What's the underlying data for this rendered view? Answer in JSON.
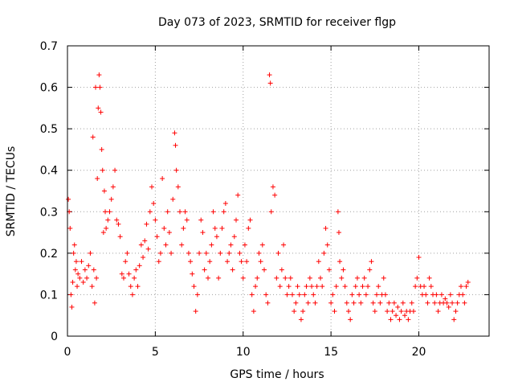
{
  "chart_data": {
    "type": "scatter",
    "title": "Day 073 of 2023, SRMTID for receiver flgp",
    "xlabel": "GPS time / hours",
    "ylabel": "SRMTID / TECUs",
    "xlim": [
      0,
      24
    ],
    "ylim": [
      0,
      0.7
    ],
    "x_ticks": [
      0,
      5,
      10,
      15,
      20
    ],
    "x_tick_labels": [
      "0",
      "5",
      "10",
      "15",
      "20"
    ],
    "y_ticks": [
      0,
      0.1,
      0.2,
      0.3,
      0.4,
      0.5,
      0.6,
      0.7
    ],
    "y_tick_labels": [
      "0",
      "0.1",
      "0.2",
      "0.3",
      "0.4",
      "0.5",
      "0.6",
      "0.7"
    ],
    "grid": true,
    "marker": "plus",
    "marker_color": "#ff0000",
    "series": [
      {
        "name": "SRMTID",
        "points": [
          [
            0.05,
            0.33
          ],
          [
            0.1,
            0.3
          ],
          [
            0.15,
            0.26
          ],
          [
            0.2,
            0.1
          ],
          [
            0.25,
            0.07
          ],
          [
            0.3,
            0.13
          ],
          [
            0.35,
            0.2
          ],
          [
            0.4,
            0.22
          ],
          [
            0.45,
            0.16
          ],
          [
            0.5,
            0.18
          ],
          [
            0.55,
            0.12
          ],
          [
            0.6,
            0.15
          ],
          [
            0.7,
            0.14
          ],
          [
            0.8,
            0.18
          ],
          [
            0.9,
            0.13
          ],
          [
            1.0,
            0.16
          ],
          [
            1.1,
            0.14
          ],
          [
            1.2,
            0.17
          ],
          [
            1.3,
            0.2
          ],
          [
            1.4,
            0.12
          ],
          [
            1.45,
            0.48
          ],
          [
            1.5,
            0.16
          ],
          [
            1.55,
            0.08
          ],
          [
            1.6,
            0.6
          ],
          [
            1.65,
            0.14
          ],
          [
            1.7,
            0.38
          ],
          [
            1.75,
            0.55
          ],
          [
            1.8,
            0.63
          ],
          [
            1.85,
            0.6
          ],
          [
            1.9,
            0.54
          ],
          [
            1.95,
            0.45
          ],
          [
            2.0,
            0.4
          ],
          [
            2.05,
            0.25
          ],
          [
            2.1,
            0.35
          ],
          [
            2.15,
            0.3
          ],
          [
            2.2,
            0.26
          ],
          [
            2.3,
            0.28
          ],
          [
            2.4,
            0.3
          ],
          [
            2.5,
            0.33
          ],
          [
            2.6,
            0.36
          ],
          [
            2.7,
            0.4
          ],
          [
            2.8,
            0.28
          ],
          [
            2.9,
            0.27
          ],
          [
            3.0,
            0.24
          ],
          [
            3.1,
            0.15
          ],
          [
            3.2,
            0.14
          ],
          [
            3.3,
            0.18
          ],
          [
            3.4,
            0.2
          ],
          [
            3.5,
            0.15
          ],
          [
            3.6,
            0.12
          ],
          [
            3.7,
            0.1
          ],
          [
            3.8,
            0.14
          ],
          [
            3.9,
            0.16
          ],
          [
            4.0,
            0.12
          ],
          [
            4.1,
            0.17
          ],
          [
            4.2,
            0.22
          ],
          [
            4.3,
            0.19
          ],
          [
            4.4,
            0.23
          ],
          [
            4.5,
            0.27
          ],
          [
            4.6,
            0.21
          ],
          [
            4.7,
            0.3
          ],
          [
            4.8,
            0.36
          ],
          [
            4.9,
            0.32
          ],
          [
            5.0,
            0.28
          ],
          [
            5.1,
            0.24
          ],
          [
            5.2,
            0.18
          ],
          [
            5.3,
            0.2
          ],
          [
            5.4,
            0.38
          ],
          [
            5.5,
            0.26
          ],
          [
            5.6,
            0.22
          ],
          [
            5.7,
            0.3
          ],
          [
            5.8,
            0.25
          ],
          [
            5.9,
            0.2
          ],
          [
            6.0,
            0.33
          ],
          [
            6.1,
            0.49
          ],
          [
            6.15,
            0.46
          ],
          [
            6.2,
            0.4
          ],
          [
            6.3,
            0.36
          ],
          [
            6.4,
            0.3
          ],
          [
            6.5,
            0.22
          ],
          [
            6.6,
            0.26
          ],
          [
            6.7,
            0.3
          ],
          [
            6.8,
            0.28
          ],
          [
            6.9,
            0.2
          ],
          [
            7.0,
            0.18
          ],
          [
            7.1,
            0.15
          ],
          [
            7.2,
            0.12
          ],
          [
            7.3,
            0.06
          ],
          [
            7.4,
            0.1
          ],
          [
            7.5,
            0.2
          ],
          [
            7.6,
            0.28
          ],
          [
            7.7,
            0.25
          ],
          [
            7.8,
            0.16
          ],
          [
            7.9,
            0.2
          ],
          [
            8.0,
            0.14
          ],
          [
            8.1,
            0.18
          ],
          [
            8.2,
            0.22
          ],
          [
            8.3,
            0.3
          ],
          [
            8.4,
            0.26
          ],
          [
            8.5,
            0.24
          ],
          [
            8.6,
            0.14
          ],
          [
            8.7,
            0.2
          ],
          [
            8.8,
            0.26
          ],
          [
            8.9,
            0.3
          ],
          [
            9.0,
            0.32
          ],
          [
            9.1,
            0.18
          ],
          [
            9.2,
            0.2
          ],
          [
            9.3,
            0.22
          ],
          [
            9.4,
            0.16
          ],
          [
            9.5,
            0.24
          ],
          [
            9.6,
            0.28
          ],
          [
            9.7,
            0.34
          ],
          [
            9.8,
            0.2
          ],
          [
            9.9,
            0.18
          ],
          [
            10.0,
            0.14
          ],
          [
            10.1,
            0.22
          ],
          [
            10.2,
            0.18
          ],
          [
            10.3,
            0.26
          ],
          [
            10.4,
            0.28
          ],
          [
            10.5,
            0.1
          ],
          [
            10.6,
            0.06
          ],
          [
            10.7,
            0.12
          ],
          [
            10.8,
            0.14
          ],
          [
            10.9,
            0.2
          ],
          [
            11.0,
            0.18
          ],
          [
            11.1,
            0.22
          ],
          [
            11.2,
            0.16
          ],
          [
            11.3,
            0.1
          ],
          [
            11.4,
            0.08
          ],
          [
            11.5,
            0.63
          ],
          [
            11.55,
            0.61
          ],
          [
            11.6,
            0.3
          ],
          [
            11.7,
            0.36
          ],
          [
            11.8,
            0.34
          ],
          [
            11.9,
            0.14
          ],
          [
            12.0,
            0.2
          ],
          [
            12.1,
            0.12
          ],
          [
            12.2,
            0.16
          ],
          [
            12.3,
            0.22
          ],
          [
            12.4,
            0.14
          ],
          [
            12.5,
            0.1
          ],
          [
            12.6,
            0.12
          ],
          [
            12.7,
            0.14
          ],
          [
            12.8,
            0.1
          ],
          [
            12.9,
            0.06
          ],
          [
            13.0,
            0.08
          ],
          [
            13.1,
            0.12
          ],
          [
            13.2,
            0.1
          ],
          [
            13.3,
            0.04
          ],
          [
            13.4,
            0.06
          ],
          [
            13.5,
            0.1
          ],
          [
            13.6,
            0.12
          ],
          [
            13.7,
            0.08
          ],
          [
            13.8,
            0.14
          ],
          [
            13.9,
            0.12
          ],
          [
            14.0,
            0.1
          ],
          [
            14.1,
            0.08
          ],
          [
            14.2,
            0.12
          ],
          [
            14.3,
            0.18
          ],
          [
            14.4,
            0.14
          ],
          [
            14.5,
            0.12
          ],
          [
            14.6,
            0.2
          ],
          [
            14.7,
            0.26
          ],
          [
            14.8,
            0.22
          ],
          [
            14.9,
            0.16
          ],
          [
            15.0,
            0.08
          ],
          [
            15.1,
            0.1
          ],
          [
            15.2,
            0.06
          ],
          [
            15.3,
            0.12
          ],
          [
            15.4,
            0.3
          ],
          [
            15.45,
            0.25
          ],
          [
            15.5,
            0.18
          ],
          [
            15.6,
            0.14
          ],
          [
            15.7,
            0.16
          ],
          [
            15.8,
            0.12
          ],
          [
            15.9,
            0.08
          ],
          [
            16.0,
            0.06
          ],
          [
            16.1,
            0.04
          ],
          [
            16.2,
            0.1
          ],
          [
            16.3,
            0.08
          ],
          [
            16.4,
            0.12
          ],
          [
            16.5,
            0.14
          ],
          [
            16.6,
            0.1
          ],
          [
            16.7,
            0.08
          ],
          [
            16.8,
            0.12
          ],
          [
            16.9,
            0.14
          ],
          [
            17.0,
            0.1
          ],
          [
            17.1,
            0.12
          ],
          [
            17.2,
            0.16
          ],
          [
            17.3,
            0.18
          ],
          [
            17.4,
            0.08
          ],
          [
            17.5,
            0.06
          ],
          [
            17.6,
            0.1
          ],
          [
            17.7,
            0.12
          ],
          [
            17.8,
            0.08
          ],
          [
            17.9,
            0.1
          ],
          [
            18.0,
            0.14
          ],
          [
            18.1,
            0.1
          ],
          [
            18.2,
            0.06
          ],
          [
            18.3,
            0.08
          ],
          [
            18.4,
            0.04
          ],
          [
            18.5,
            0.06
          ],
          [
            18.6,
            0.08
          ],
          [
            18.7,
            0.05
          ],
          [
            18.8,
            0.07
          ],
          [
            18.9,
            0.04
          ],
          [
            19.0,
            0.06
          ],
          [
            19.1,
            0.08
          ],
          [
            19.2,
            0.05
          ],
          [
            19.3,
            0.06
          ],
          [
            19.4,
            0.04
          ],
          [
            19.5,
            0.06
          ],
          [
            19.6,
            0.08
          ],
          [
            19.7,
            0.06
          ],
          [
            19.8,
            0.12
          ],
          [
            19.9,
            0.14
          ],
          [
            20.0,
            0.19
          ],
          [
            20.1,
            0.12
          ],
          [
            20.2,
            0.1
          ],
          [
            20.3,
            0.12
          ],
          [
            20.4,
            0.1
          ],
          [
            20.5,
            0.08
          ],
          [
            20.6,
            0.14
          ],
          [
            20.7,
            0.12
          ],
          [
            20.8,
            0.1
          ],
          [
            20.9,
            0.08
          ],
          [
            21.0,
            0.1
          ],
          [
            21.1,
            0.06
          ],
          [
            21.2,
            0.08
          ],
          [
            21.3,
            0.1
          ],
          [
            21.4,
            0.08
          ],
          [
            21.5,
            0.09
          ],
          [
            21.6,
            0.08
          ],
          [
            21.7,
            0.07
          ],
          [
            21.8,
            0.1
          ],
          [
            21.9,
            0.08
          ],
          [
            22.0,
            0.04
          ],
          [
            22.1,
            0.06
          ],
          [
            22.2,
            0.08
          ],
          [
            22.3,
            0.1
          ],
          [
            22.4,
            0.12
          ],
          [
            22.5,
            0.1
          ],
          [
            22.6,
            0.08
          ],
          [
            22.7,
            0.12
          ],
          [
            22.8,
            0.13
          ]
        ]
      }
    ]
  }
}
